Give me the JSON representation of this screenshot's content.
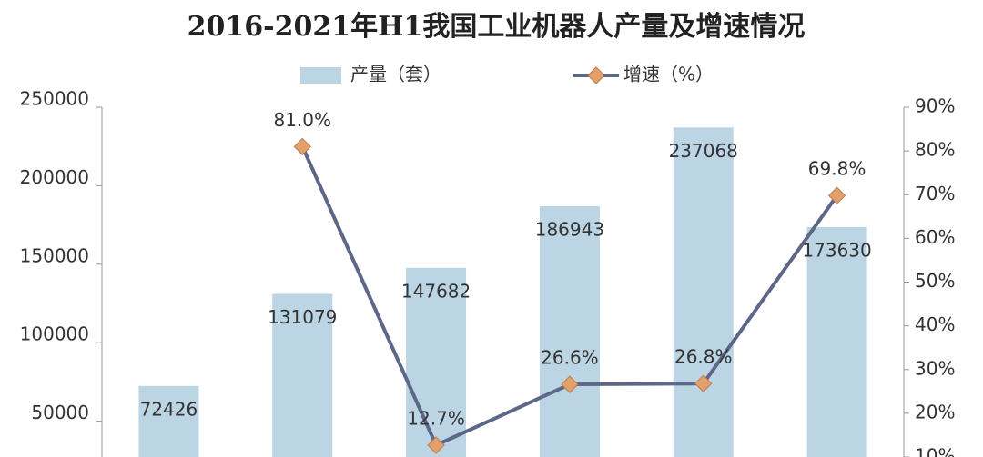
{
  "chart_data": {
    "type": "bar-line",
    "title": "2016-2021年H1我国工业机器人产量及增速情况",
    "categories": [
      null,
      null,
      null,
      null,
      null,
      null
    ],
    "series": [
      {
        "name": "产量（套）",
        "type": "bar",
        "color": "#bcd5e4",
        "values": [
          72426,
          131079,
          147682,
          186943,
          237068,
          173630
        ]
      },
      {
        "name": "增速（%）",
        "type": "line",
        "axis": "y2",
        "color": "#5d6788",
        "marker_color": "#e4a06a",
        "values": [
          null,
          81.0,
          12.7,
          26.6,
          26.8,
          69.8
        ],
        "value_labels": [
          null,
          "81.0%",
          "12.7%",
          "26.6%",
          "26.8%",
          "69.8%"
        ]
      }
    ],
    "ylim": [
      27200,
      250000
    ],
    "yticks": [
      50000,
      100000,
      150000,
      200000,
      250000
    ],
    "y2lim": [
      10,
      90
    ],
    "y2ticks": [
      {
        "value": 10,
        "label": "10%"
      },
      {
        "value": 20,
        "label": "20%"
      },
      {
        "value": 30,
        "label": "30%"
      },
      {
        "value": 40,
        "label": "40%"
      },
      {
        "value": 50,
        "label": "50%"
      },
      {
        "value": 60,
        "label": "60%"
      },
      {
        "value": 70,
        "label": "70%"
      },
      {
        "value": 80,
        "label": "80%"
      },
      {
        "value": 90,
        "label": "90%"
      }
    ],
    "grid": false,
    "legend": "top"
  }
}
